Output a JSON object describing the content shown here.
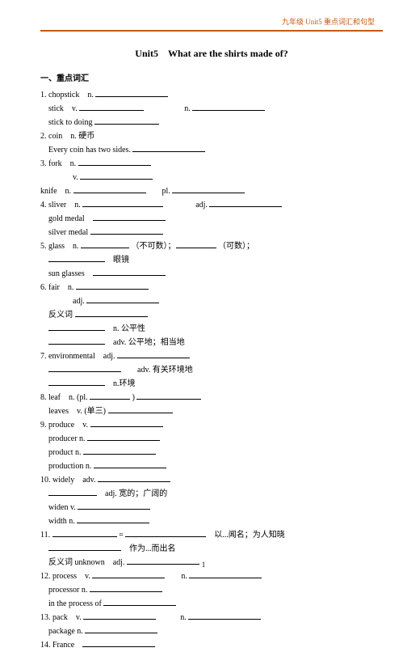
{
  "header": {
    "right": "九年级 Unit5 重点词汇和句型"
  },
  "title": "Unit5　What are the shirts made of?",
  "section": "一、重点词汇",
  "items": [
    {
      "lines": [
        "1. chopstick　n. ____w90",
        "　stick　v. ____w80　　　　　n. ____w90",
        "　stick to doing ____w80"
      ]
    },
    {
      "lines": [
        "2. coin　n. 硬币",
        "　Every coin has two sides. ____w90"
      ]
    },
    {
      "lines": [
        "3. fork　n. ____w90",
        "　　　　v. ____w90",
        "knife　n. ____w90　　pl. ____w90"
      ]
    },
    {
      "lines": [
        "4. sliver　n. ____w100　　　　adj. ____w90",
        "　gold medal　____w90",
        "　silver medal ____w90"
      ]
    },
    {
      "lines": [
        "5. glass　n. ____w60 （不可数）；____w50 （可数）；",
        "　____w70　眼镜",
        "　sun glasses　____w90"
      ]
    },
    {
      "lines": [
        "6. fair　n. ____w90",
        "　　　　adj. ____w90",
        "　反义词 ____w90",
        "　____w70　n. 公平性",
        "　____w70　adv. 公平地；相当地"
      ]
    },
    {
      "lines": [
        "7. environmental　adj. ____w90",
        "　____w90　　adv. 有关环境地",
        "　____w70　n.环境"
      ]
    },
    {
      "lines": [
        "8. leaf　n. (pl. ____w50 ) ____w80",
        "　leaves　v. (单三) ____w80"
      ]
    },
    {
      "lines": [
        "9. produce　v. ____w90",
        "　producer n. ____w90",
        "　product n. ____w90",
        "　production n. ____w90"
      ]
    },
    {
      "lines": [
        "10. widely　adv. ____w90",
        "　____w60　adj. 宽的；广阔的",
        "　widen v. ____w90",
        "　width n. ____w90"
      ]
    },
    {
      "lines": [
        "11. ____w80 = ____w100　以...闻名；为人知晓",
        "　____w90　作为...而出名",
        "　反义词 unknown　adj. ____w90"
      ]
    },
    {
      "lines": [
        "12. process　v. ____w90　　n. ____w90",
        "　processor n. ____w90",
        "　in the process of ____w90"
      ]
    },
    {
      "lines": [
        "13. pack　v. ____w90　　　n. ____w90",
        "　package n. ____w90"
      ]
    },
    {
      "lines": [
        "14. France　____w90"
      ]
    }
  ],
  "pagenum": "1"
}
